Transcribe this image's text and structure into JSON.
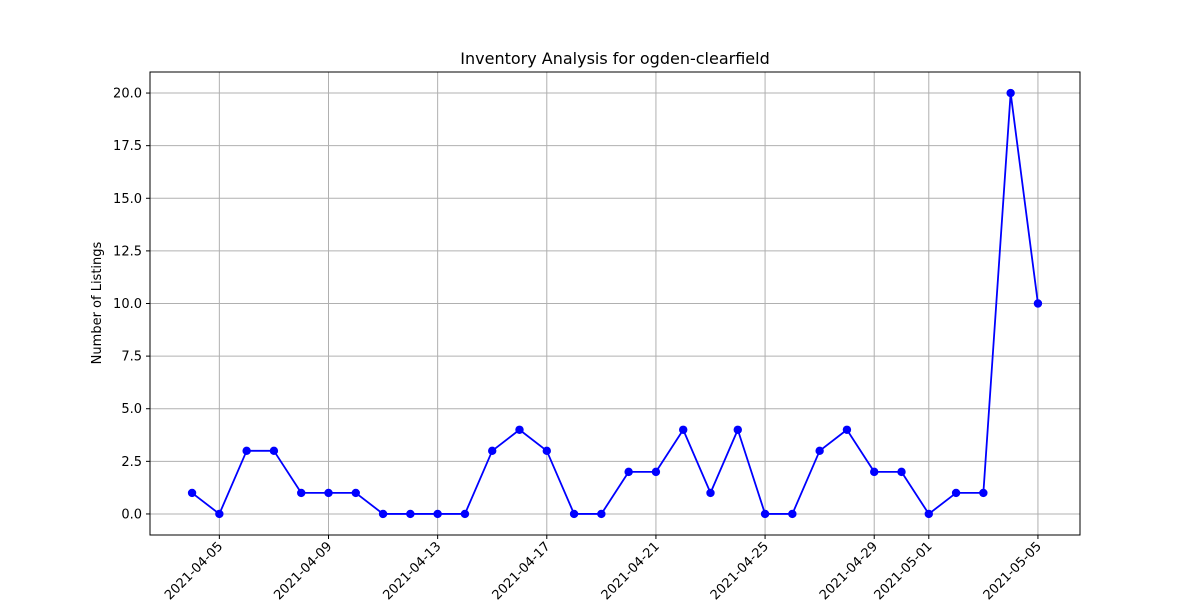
{
  "chart_data": {
    "type": "line",
    "title": "Inventory Analysis for ogden-clearfield",
    "xlabel": "",
    "ylabel": "Number of Listings",
    "x": [
      "2021-04-04",
      "2021-04-05",
      "2021-04-06",
      "2021-04-07",
      "2021-04-08",
      "2021-04-09",
      "2021-04-10",
      "2021-04-11",
      "2021-04-12",
      "2021-04-13",
      "2021-04-14",
      "2021-04-15",
      "2021-04-16",
      "2021-04-17",
      "2021-04-18",
      "2021-04-19",
      "2021-04-20",
      "2021-04-21",
      "2021-04-22",
      "2021-04-23",
      "2021-04-24",
      "2021-04-25",
      "2021-04-26",
      "2021-04-27",
      "2021-04-28",
      "2021-04-29",
      "2021-04-30",
      "2021-05-01",
      "2021-05-02",
      "2021-05-03",
      "2021-05-04",
      "2021-05-05"
    ],
    "series": [
      {
        "values": [
          1,
          0,
          3,
          3,
          1,
          1,
          1,
          0,
          0,
          0,
          0,
          3,
          4,
          3,
          0,
          0,
          2,
          2,
          4,
          1,
          4,
          0,
          0,
          3,
          4,
          2,
          2,
          0,
          1,
          1,
          20,
          10
        ],
        "color": "#0000ff",
        "marker": "circle"
      }
    ],
    "xticks": [
      "2021-04-05",
      "2021-04-09",
      "2021-04-13",
      "2021-04-17",
      "2021-04-21",
      "2021-04-25",
      "2021-04-29",
      "2021-05-01",
      "2021-05-05"
    ],
    "yticks": [
      0.0,
      2.5,
      5.0,
      7.5,
      10.0,
      12.5,
      15.0,
      17.5,
      20.0
    ],
    "ytick_labels": [
      "0.0",
      "2.5",
      "5.0",
      "7.5",
      "10.0",
      "12.5",
      "15.0",
      "17.5",
      "20.0"
    ],
    "xlim": [
      "2021-04-02 11:00",
      "2021-05-06 13:00"
    ],
    "ylim": [
      -1.0,
      21.0
    ],
    "grid": true,
    "legend": "none"
  }
}
